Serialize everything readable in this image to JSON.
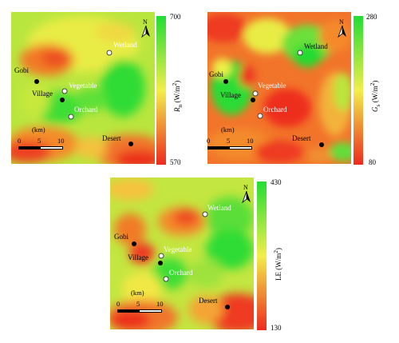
{
  "panels": [
    {
      "id": "rn",
      "colorbar": {
        "max": "700",
        "min": "570",
        "var": "R",
        "sub": "n",
        "unit": " (W/m",
        "sup": "2",
        "close": ")"
      },
      "sites": {
        "gobi": "Gobi",
        "village": "Village",
        "vegetable": "Vegetable",
        "orchard": "Orchard",
        "wetland": "Wetland",
        "desert": "Desert"
      },
      "scale": {
        "unit": "(km)",
        "t0": "0",
        "t1": "5",
        "t2": "10"
      },
      "north": "N"
    },
    {
      "id": "gs",
      "colorbar": {
        "max": "280",
        "min": "80",
        "var": "G",
        "sub": "s",
        "unit": " (W/m",
        "sup": "2",
        "close": ")"
      },
      "sites": {
        "gobi": "Gobi",
        "village": "Village",
        "vegetable": "Vegetable",
        "orchard": "Orchard",
        "wetland": "Wetland",
        "desert": "Desert"
      },
      "scale": {
        "unit": "(km)",
        "t0": "0",
        "t1": "5",
        "t2": "10"
      },
      "north": "N"
    },
    {
      "id": "le",
      "colorbar": {
        "max": "430",
        "min": "130",
        "var": "LE",
        "sub": "",
        "unit": " (W/m",
        "sup": "2",
        "close": ")"
      },
      "sites": {
        "gobi": "Gobi",
        "village": "Village",
        "vegetable": "Vegetable",
        "orchard": "Orchard",
        "wetland": "Wetland",
        "desert": "Desert"
      },
      "scale": {
        "unit": "(km)",
        "t0": "0",
        "t1": "5",
        "t2": "10"
      },
      "north": "N"
    }
  ],
  "colors": {
    "high": "#22dd33",
    "mid": "#f2ee4a",
    "low": "#ee2a1e"
  }
}
